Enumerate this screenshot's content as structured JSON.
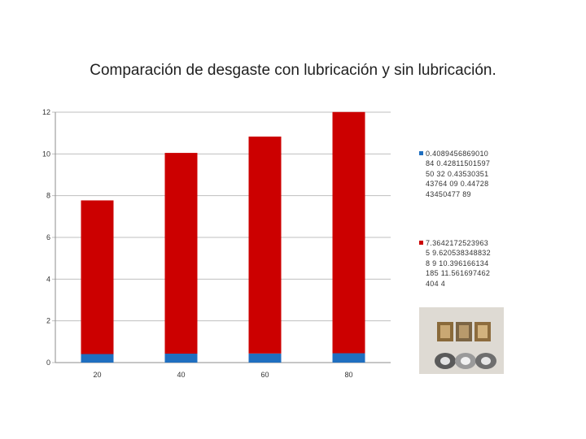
{
  "title": "Comparación de desgaste con lubricación y sin lubricación.",
  "chart_data": {
    "type": "bar",
    "stacked": true,
    "categories": [
      "20",
      "40",
      "60",
      "80"
    ],
    "series": [
      {
        "name": "0.4089456869010 84 0.4281150159750 32 0.4353035143764 09 0.4472843450477 89",
        "color": "#1f6fc0",
        "values": [
          0.408945686901084,
          0.428115015975032,
          0.435303514376409,
          0.447284345047789
        ]
      },
      {
        "name": "7.3642172523963 5 9.6205383488328 9 10.396166134185 11.561697462404 4",
        "color": "#cc0000",
        "values": [
          7.36421725239635,
          9.62053834883289,
          10.396166134185,
          11.5616974624044
        ]
      }
    ],
    "y_ticks": [
      "0",
      "2",
      "4",
      "6",
      "8",
      "10",
      "12"
    ],
    "ylim": [
      0,
      12
    ],
    "grid": true,
    "legend_position": "right"
  },
  "photo": {
    "alt": "bushing-samples-photo"
  }
}
